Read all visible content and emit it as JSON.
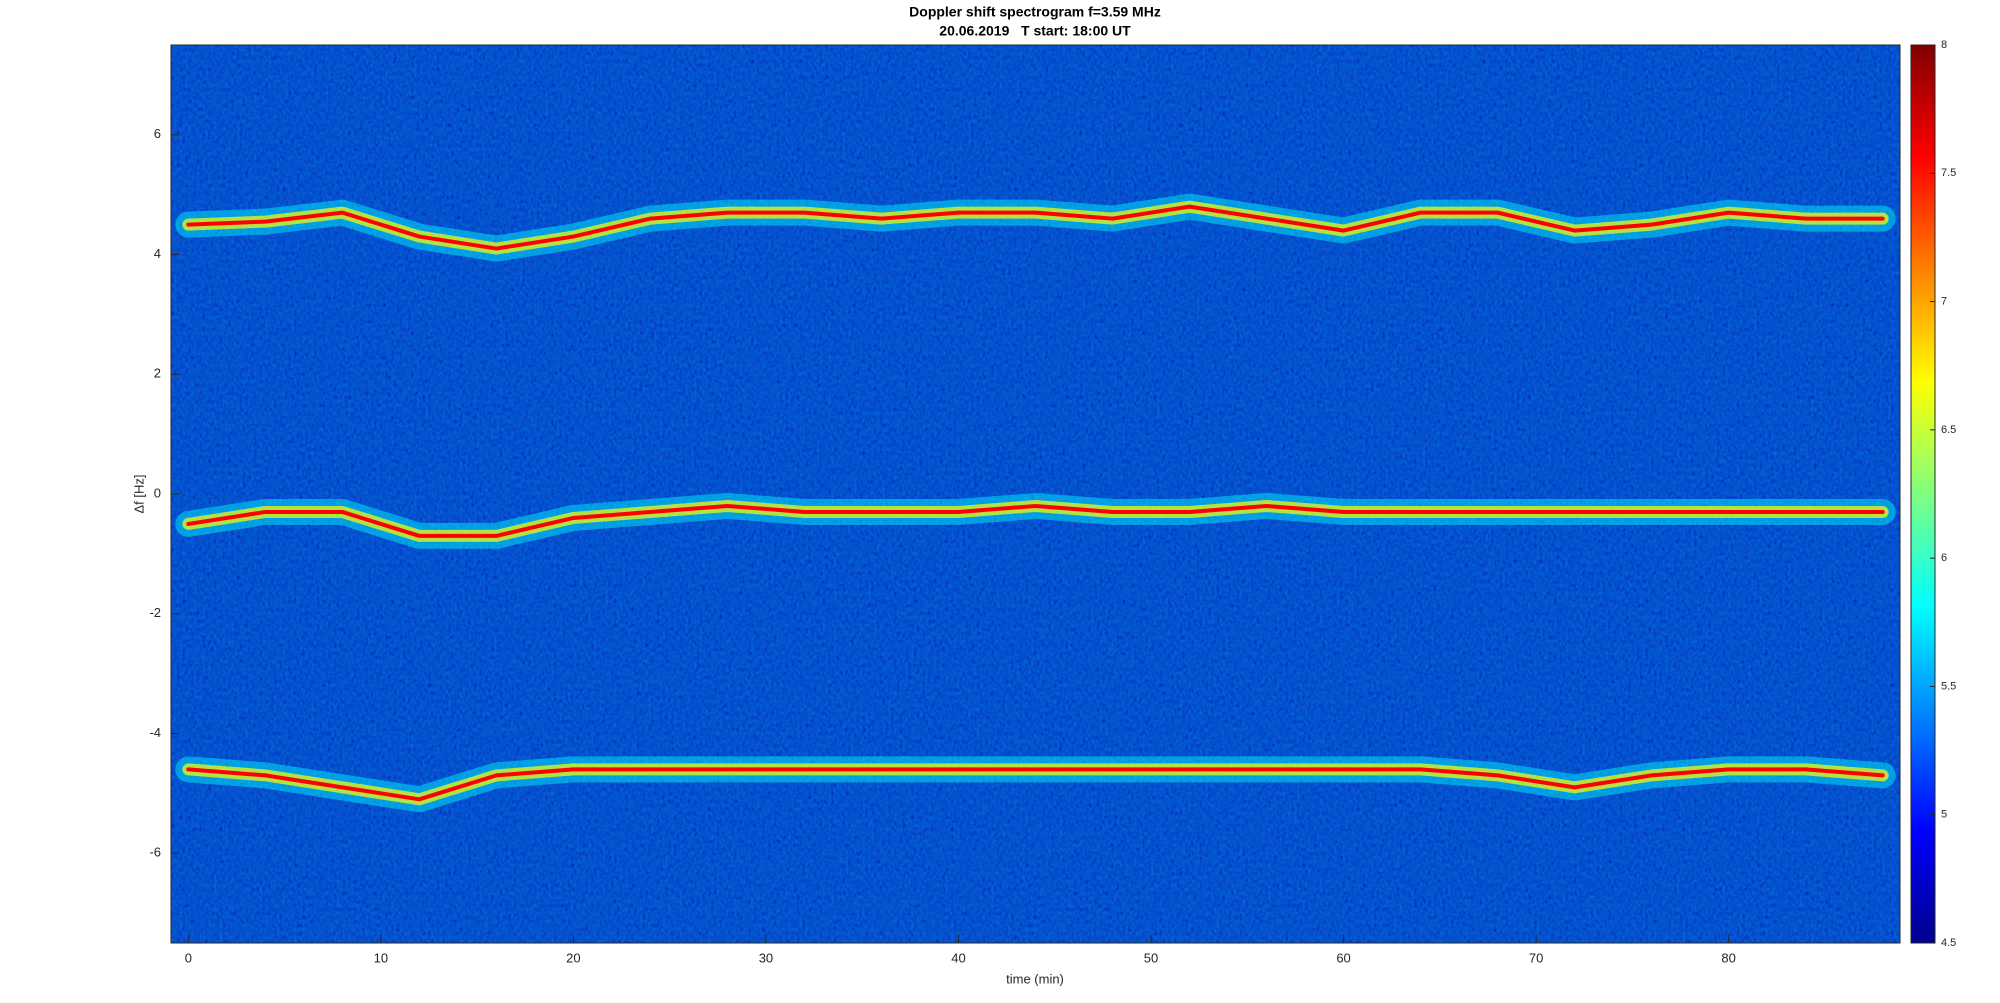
{
  "chart_data": {
    "type": "spectrogram",
    "title": "Doppler shift spectrogram f=3.59 MHz",
    "subtitle": "20.06.2019   T start: 18:00 UT",
    "x_label": "time (min)",
    "y_label": "Δf [Hz]",
    "x": [
      0,
      4,
      8,
      12,
      16,
      20,
      24,
      28,
      32,
      36,
      40,
      44,
      48,
      52,
      56,
      60,
      64,
      68,
      72,
      76,
      80,
      84,
      88
    ],
    "series": [
      {
        "color": "#ff0000",
        "values": [
          4.5,
          4.55,
          4.7,
          4.3,
          4.1,
          4.3,
          4.6,
          4.7,
          4.7,
          4.6,
          4.7,
          4.7,
          4.6,
          4.8,
          4.6,
          4.4,
          4.7,
          4.7,
          4.4,
          4.5,
          4.7,
          4.6,
          4.6
        ]
      },
      {
        "color": "#ff0000",
        "values": [
          -0.5,
          -0.3,
          -0.3,
          -0.7,
          -0.7,
          -0.4,
          -0.3,
          -0.2,
          -0.3,
          -0.3,
          -0.3,
          -0.2,
          -0.3,
          -0.3,
          -0.2,
          -0.3,
          -0.3,
          -0.3,
          -0.3,
          -0.3,
          -0.3,
          -0.3,
          -0.3
        ]
      },
      {
        "color": "#ff0000",
        "values": [
          -4.6,
          -4.7,
          -4.9,
          -5.1,
          -4.7,
          -4.6,
          -4.6,
          -4.6,
          -4.6,
          -4.6,
          -4.6,
          -4.6,
          -4.6,
          -4.6,
          -4.6,
          -4.6,
          -4.6,
          -4.7,
          -4.9,
          -4.7,
          -4.6,
          -4.6,
          -4.7
        ]
      }
    ],
    "xlim": [
      -0.9,
      88.9
    ],
    "ylim": [
      -7.5,
      7.5
    ],
    "xticks": [
      0,
      10,
      20,
      30,
      40,
      50,
      60,
      70,
      80
    ],
    "yticks": [
      -6,
      -4,
      -2,
      0,
      2,
      4,
      6
    ],
    "clim": [
      4.5,
      8
    ],
    "cticks": [
      4.5,
      5,
      5.5,
      6,
      6.5,
      7,
      7.5,
      8
    ],
    "colormap": [
      "#00008f",
      "#0000ff",
      "#0080ff",
      "#00ffff",
      "#80ff80",
      "#ffff00",
      "#ff8000",
      "#ff0000",
      "#800000"
    ]
  }
}
